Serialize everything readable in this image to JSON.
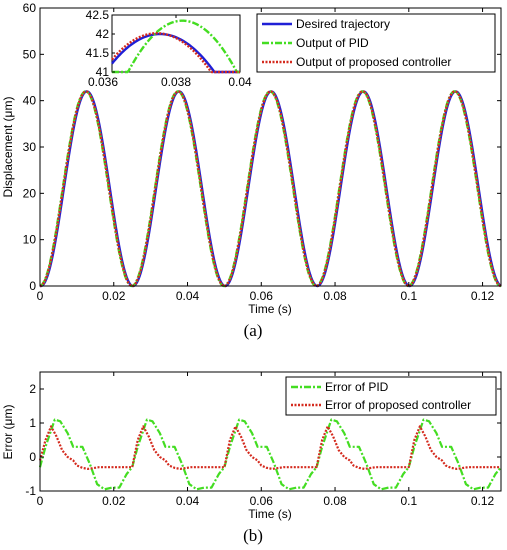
{
  "chart_data": [
    {
      "type": "line",
      "panel_label": "(a)",
      "xlabel": "Time (s)",
      "ylabel": "Displacement (μm)",
      "xlim": [
        0,
        0.125
      ],
      "ylim": [
        0,
        60
      ],
      "xticks": [
        0,
        0.02,
        0.04,
        0.06,
        0.08,
        0.1,
        0.12
      ],
      "xtick_labels": [
        "0",
        "0.02",
        "0.04",
        "0.06",
        "0.08",
        "0.1",
        "0.12"
      ],
      "yticks": [
        0,
        10,
        20,
        30,
        40,
        50,
        60
      ],
      "ytick_labels": [
        "0",
        "10",
        "20",
        "30",
        "40",
        "50",
        "60"
      ],
      "grid": false,
      "legend_position": "top-right",
      "signal": {
        "period_s": 0.025,
        "min_um": 0,
        "max_um": 42,
        "peak_time_s": 0.0125
      },
      "series": [
        {
          "name": "Desired trajectory",
          "color": "#1f1fd6",
          "style": "solid"
        },
        {
          "name": "Output of PID",
          "color": "#44dd22",
          "style": "dashdot"
        },
        {
          "name": "Output of proposed controller",
          "color": "#d42a1e",
          "style": "dotted"
        }
      ],
      "inset": {
        "xlim": [
          0.036,
          0.04
        ],
        "ylim": [
          41,
          42.5
        ],
        "xticks": [
          0.036,
          0.038,
          0.04
        ],
        "xtick_labels": [
          "0.036",
          "0.038",
          "0.04"
        ],
        "yticks": [
          41,
          41.5,
          42,
          42.5
        ],
        "ytick_labels": [
          "41",
          "41.5",
          "42",
          "42.5"
        ],
        "peaks": [
          {
            "series": "Desired trajectory",
            "x": 0.0375,
            "y": 42.0
          },
          {
            "series": "Output of PID",
            "x": 0.0382,
            "y": 42.35
          },
          {
            "series": "Output of proposed controller",
            "x": 0.0374,
            "y": 42.02
          }
        ]
      }
    },
    {
      "type": "line",
      "panel_label": "(b)",
      "xlabel": "Time (s)",
      "ylabel": "Error (μm)",
      "xlim": [
        0,
        0.125
      ],
      "ylim": [
        -1,
        2.5
      ],
      "xticks": [
        0,
        0.02,
        0.04,
        0.06,
        0.08,
        0.1,
        0.12
      ],
      "xtick_labels": [
        "0",
        "0.02",
        "0.04",
        "0.06",
        "0.08",
        "0.1",
        "0.12"
      ],
      "yticks": [
        -1,
        0,
        1,
        2
      ],
      "ytick_labels": [
        "-1",
        "0",
        "1",
        "2"
      ],
      "grid": false,
      "legend_position": "top-right",
      "series": [
        {
          "name": "Error of PID",
          "color": "#44dd22",
          "style": "dashdot",
          "cycle_x": [
            0,
            0.0015,
            0.004,
            0.0055,
            0.0075,
            0.009,
            0.0115,
            0.0135,
            0.0155,
            0.0175,
            0.0195,
            0.0215,
            0.0235,
            0.025
          ],
          "cycle_y": [
            -0.3,
            0.3,
            1.1,
            1.05,
            0.7,
            0.3,
            0.3,
            -0.2,
            -0.8,
            -0.95,
            -0.9,
            -0.9,
            -0.5,
            -0.3
          ]
        },
        {
          "name": "Error of proposed controller",
          "color": "#d42a1e",
          "style": "dotted",
          "cycle_x": [
            0,
            0.0015,
            0.003,
            0.0045,
            0.006,
            0.0075,
            0.009,
            0.01,
            0.0115,
            0.013,
            0.016,
            0.025
          ],
          "cycle_y": [
            -0.1,
            0.5,
            0.9,
            0.6,
            0.2,
            0.0,
            -0.1,
            -0.25,
            -0.32,
            -0.35,
            -0.3,
            -0.3
          ]
        }
      ]
    }
  ]
}
